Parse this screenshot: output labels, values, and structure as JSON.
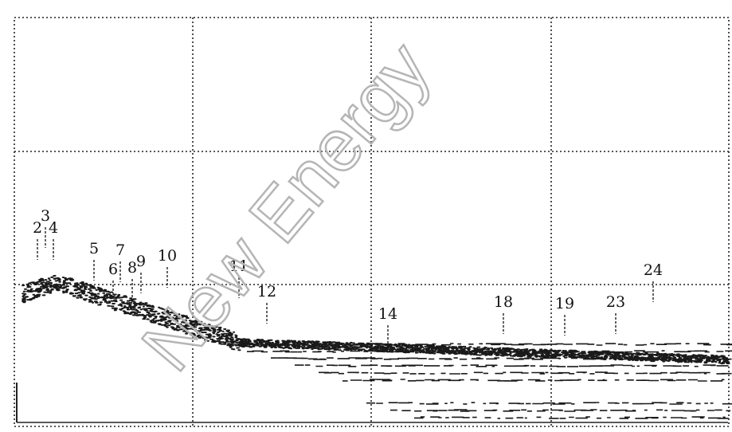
{
  "watermark": "New Energy",
  "peaks": [
    {
      "label": "2"
    },
    {
      "label": "3"
    },
    {
      "label": "4"
    },
    {
      "label": "5"
    },
    {
      "label": "6"
    },
    {
      "label": "7"
    },
    {
      "label": "8"
    },
    {
      "label": "9"
    },
    {
      "label": "10"
    },
    {
      "label": "11"
    },
    {
      "label": "12"
    },
    {
      "label": "14"
    },
    {
      "label": "18"
    },
    {
      "label": "19"
    },
    {
      "label": "23"
    },
    {
      "label": "24"
    }
  ]
}
